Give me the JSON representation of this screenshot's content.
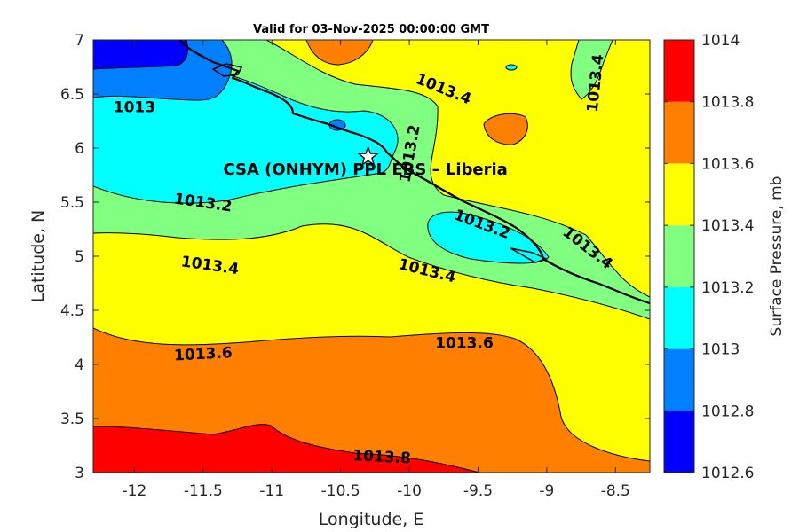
{
  "chart_data": {
    "type": "contour",
    "title": "Valid for 03-Nov-2025 00:00:00 GMT",
    "xlabel": "Longitude, E",
    "ylabel": "Latitude, N",
    "xlim": [
      -12.3,
      -8.25
    ],
    "ylim": [
      3,
      7
    ],
    "xticks": [
      -12,
      -11.5,
      -11,
      -10.5,
      -10,
      -9.5,
      -9,
      -8.5
    ],
    "yticks": [
      3,
      3.5,
      4,
      4.5,
      5,
      5.5,
      6,
      6.5,
      7
    ],
    "xtick_labels": [
      "-12",
      "-11.5",
      "-11",
      "-10.5",
      "-10",
      "-9.5",
      "-9",
      "-8.5"
    ],
    "ytick_labels": [
      "3",
      "3.5",
      "4",
      "4.5",
      "5",
      "5.5",
      "6",
      "6.5",
      "7"
    ],
    "colorbar": {
      "label": "Surface Pressure, mb",
      "levels": [
        1012.6,
        1012.8,
        1013,
        1013.2,
        1013.4,
        1013.6,
        1013.8,
        1014
      ],
      "tick_labels": [
        "1012.6",
        "1012.8",
        "1013",
        "1013.2",
        "1013.4",
        "1013.6",
        "1013.8",
        "1014"
      ],
      "colors": [
        "#0000ff",
        "#0080ff",
        "#00ffff",
        "#80ff80",
        "#ffff00",
        "#ff8000",
        "#ff0000",
        "#800000"
      ]
    },
    "contour_labels": [
      {
        "text": "1013",
        "lon": -12.0,
        "lat": 6.38,
        "rot": 0
      },
      {
        "text": "1013.4",
        "lon": -9.75,
        "lat": 6.55,
        "rot": 22
      },
      {
        "text": "1013.2",
        "lon": -10.0,
        "lat": 5.95,
        "rot": -80
      },
      {
        "text": "1013.4",
        "lon": -8.65,
        "lat": 6.6,
        "rot": -84
      },
      {
        "text": "1013.2",
        "lon": -11.5,
        "lat": 5.5,
        "rot": 8
      },
      {
        "text": "1013.2",
        "lon": -9.47,
        "lat": 5.3,
        "rot": 20
      },
      {
        "text": "1013.4",
        "lon": -8.7,
        "lat": 5.08,
        "rot": 38
      },
      {
        "text": "1013.4",
        "lon": -11.45,
        "lat": 4.92,
        "rot": 8
      },
      {
        "text": "1013.4",
        "lon": -9.87,
        "lat": 4.87,
        "rot": 14
      },
      {
        "text": "1013.6",
        "lon": -11.5,
        "lat": 4.1,
        "rot": -3
      },
      {
        "text": "1013.6",
        "lon": -9.6,
        "lat": 4.2,
        "rot": 0
      },
      {
        "text": "1013.8",
        "lon": -10.2,
        "lat": 3.15,
        "rot": 3
      }
    ],
    "site": {
      "label": "CSA (ONHYM) PPL EBS  – Liberia",
      "lon": -10.3,
      "lat": 5.92
    }
  }
}
